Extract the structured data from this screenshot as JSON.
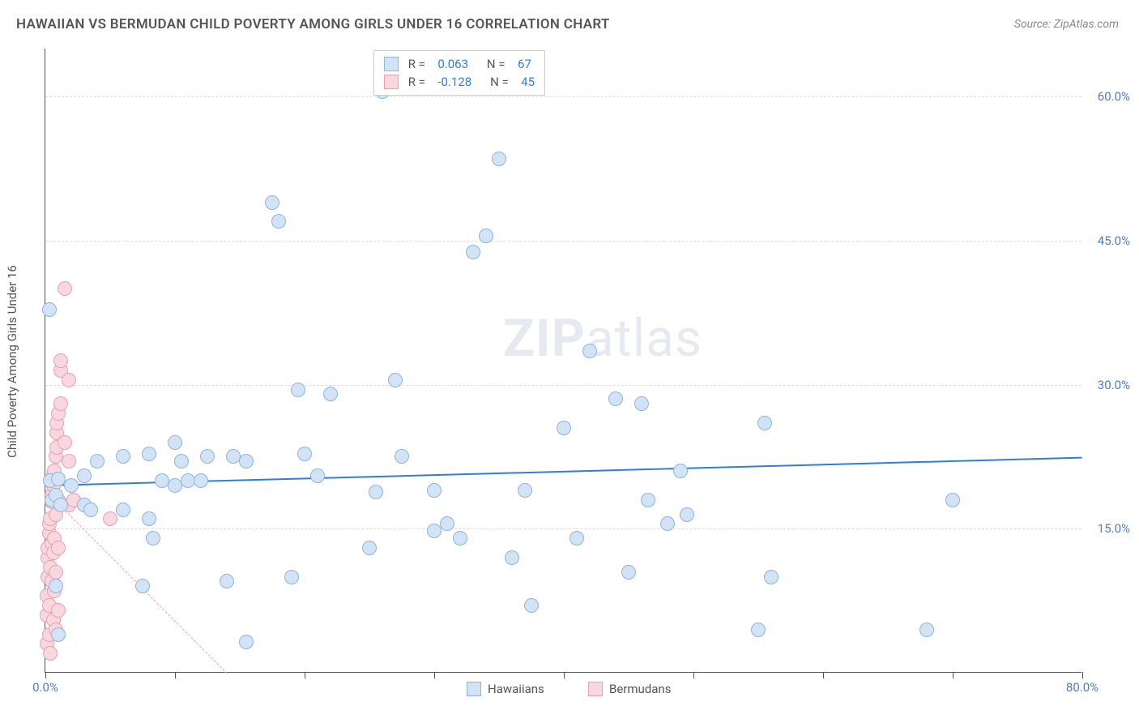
{
  "title": "HAWAIIAN VS BERMUDAN CHILD POVERTY AMONG GIRLS UNDER 16 CORRELATION CHART",
  "source": "Source: ZipAtlas.com",
  "y_axis_label": "Child Poverty Among Girls Under 16",
  "watermark": {
    "bold": "ZIP",
    "rest": "atlas"
  },
  "chart": {
    "type": "scatter",
    "xlim": [
      0,
      80
    ],
    "ylim": [
      0,
      65
    ],
    "x_ticks": [
      0,
      10,
      20,
      30,
      40,
      50,
      60,
      70,
      80
    ],
    "x_tick_labels": {
      "0": "0.0%",
      "80": "80.0%"
    },
    "y_gridlines": [
      15,
      30,
      45,
      60
    ],
    "y_tick_labels": {
      "15": "15.0%",
      "30": "30.0%",
      "45": "45.0%",
      "60": "60.0%"
    },
    "grid_color": "#dddddd",
    "background_color": "#ffffff",
    "axis_color": "#555555",
    "marker_radius": 9,
    "series": [
      {
        "name": "Hawaiians",
        "fill": "#d2e3f5",
        "stroke": "#8cb4df",
        "trend_color": "#2f7ed8",
        "trend_width": 2.5,
        "trend_dash": "solid",
        "R": "0.063",
        "N": "67",
        "trend": {
          "x1": 0,
          "y1": 19.6,
          "x2": 80,
          "y2": 22.5
        },
        "points": [
          [
            0.3,
            37.8
          ],
          [
            0.4,
            20.0
          ],
          [
            0.5,
            18.0
          ],
          [
            0.8,
            9.0
          ],
          [
            0.8,
            18.5
          ],
          [
            1.0,
            4.0
          ],
          [
            1.0,
            20.2
          ],
          [
            1.2,
            17.5
          ],
          [
            2.0,
            19.5
          ],
          [
            3.0,
            20.5
          ],
          [
            3.0,
            17.5
          ],
          [
            3.5,
            17.0
          ],
          [
            4.0,
            22.0
          ],
          [
            6.0,
            17.0
          ],
          [
            6.0,
            22.5
          ],
          [
            7.5,
            9.0
          ],
          [
            8.0,
            16.0
          ],
          [
            8.0,
            22.8
          ],
          [
            8.3,
            14.0
          ],
          [
            9.0,
            20.0
          ],
          [
            10.0,
            19.5
          ],
          [
            10.0,
            24.0
          ],
          [
            10.5,
            22.0
          ],
          [
            11.0,
            20.0
          ],
          [
            12.0,
            20.0
          ],
          [
            12.5,
            22.5
          ],
          [
            14.0,
            9.5
          ],
          [
            14.5,
            22.5
          ],
          [
            15.5,
            22.0
          ],
          [
            15.5,
            3.2
          ],
          [
            17.5,
            49.0
          ],
          [
            18.0,
            47.0
          ],
          [
            19.0,
            10.0
          ],
          [
            19.5,
            29.5
          ],
          [
            20.0,
            22.8
          ],
          [
            21.0,
            20.5
          ],
          [
            22.0,
            29.0
          ],
          [
            25.0,
            13.0
          ],
          [
            25.5,
            18.8
          ],
          [
            26.0,
            60.5
          ],
          [
            27.0,
            30.5
          ],
          [
            27.5,
            22.5
          ],
          [
            30.0,
            19.0
          ],
          [
            30.0,
            14.8
          ],
          [
            31.0,
            15.5
          ],
          [
            32.0,
            14.0
          ],
          [
            33.0,
            43.8
          ],
          [
            34.0,
            45.5
          ],
          [
            35.0,
            53.5
          ],
          [
            36.0,
            12.0
          ],
          [
            37.0,
            19.0
          ],
          [
            37.5,
            7.0
          ],
          [
            40.0,
            25.5
          ],
          [
            41.0,
            14.0
          ],
          [
            42.0,
            33.5
          ],
          [
            44.0,
            28.5
          ],
          [
            45.0,
            10.5
          ],
          [
            46.0,
            28.0
          ],
          [
            46.5,
            18.0
          ],
          [
            48.0,
            15.5
          ],
          [
            49.0,
            21.0
          ],
          [
            49.5,
            16.5
          ],
          [
            55.0,
            4.5
          ],
          [
            55.5,
            26.0
          ],
          [
            56.0,
            10.0
          ],
          [
            68.0,
            4.5
          ],
          [
            70.0,
            18.0
          ]
        ]
      },
      {
        "name": "Bermudans",
        "fill": "#f8d7df",
        "stroke": "#e8a0b3",
        "trend_color": "#e8a0b3",
        "trend_width": 1.5,
        "trend_dash": "dashed",
        "R": "-0.128",
        "N": "45",
        "trend": {
          "x1": 0,
          "y1": 19.0,
          "x2": 14,
          "y2": 0
        },
        "points": [
          [
            0.1,
            3.0
          ],
          [
            0.1,
            6.0
          ],
          [
            0.1,
            8.0
          ],
          [
            0.2,
            10.0
          ],
          [
            0.2,
            12.0
          ],
          [
            0.2,
            13.0
          ],
          [
            0.3,
            4.0
          ],
          [
            0.3,
            7.0
          ],
          [
            0.3,
            14.5
          ],
          [
            0.3,
            15.5
          ],
          [
            0.4,
            2.0
          ],
          [
            0.4,
            11.0
          ],
          [
            0.4,
            16.0
          ],
          [
            0.5,
            9.5
          ],
          [
            0.5,
            13.5
          ],
          [
            0.5,
            17.8
          ],
          [
            0.5,
            18.5
          ],
          [
            0.6,
            5.5
          ],
          [
            0.6,
            12.5
          ],
          [
            0.6,
            19.5
          ],
          [
            0.6,
            20.5
          ],
          [
            0.7,
            8.5
          ],
          [
            0.7,
            14.0
          ],
          [
            0.7,
            21.0
          ],
          [
            0.8,
            4.5
          ],
          [
            0.8,
            10.5
          ],
          [
            0.8,
            16.5
          ],
          [
            0.8,
            22.5
          ],
          [
            0.9,
            23.5
          ],
          [
            0.9,
            25.0
          ],
          [
            0.9,
            26.0
          ],
          [
            1.0,
            6.5
          ],
          [
            1.0,
            13.0
          ],
          [
            1.0,
            18.0
          ],
          [
            1.0,
            27.0
          ],
          [
            1.2,
            28.0
          ],
          [
            1.2,
            31.5
          ],
          [
            1.2,
            32.5
          ],
          [
            1.5,
            40.0
          ],
          [
            1.5,
            24.0
          ],
          [
            1.8,
            17.5
          ],
          [
            1.8,
            22.0
          ],
          [
            1.8,
            30.5
          ],
          [
            2.2,
            18.0
          ],
          [
            5.0,
            16.0
          ]
        ]
      }
    ]
  },
  "stats_box": {
    "rows": [
      {
        "swatch_fill": "#d2e3f5",
        "swatch_stroke": "#8cb4df",
        "r_label": "R =",
        "r_val": "0.063",
        "r_color": "#2f7ed8",
        "n_label": "N =",
        "n_val": "67",
        "n_color": "#2f7ed8"
      },
      {
        "swatch_fill": "#f8d7df",
        "swatch_stroke": "#e8a0b3",
        "r_label": "R =",
        "r_val": "-0.128",
        "r_color": "#2f7ed8",
        "n_label": "N =",
        "n_val": "45",
        "n_color": "#2f7ed8"
      }
    ]
  },
  "legend": [
    {
      "swatch_fill": "#d2e3f5",
      "swatch_stroke": "#8cb4df",
      "label": "Hawaiians"
    },
    {
      "swatch_fill": "#f8d7df",
      "swatch_stroke": "#e8a0b3",
      "label": "Bermudans"
    }
  ]
}
